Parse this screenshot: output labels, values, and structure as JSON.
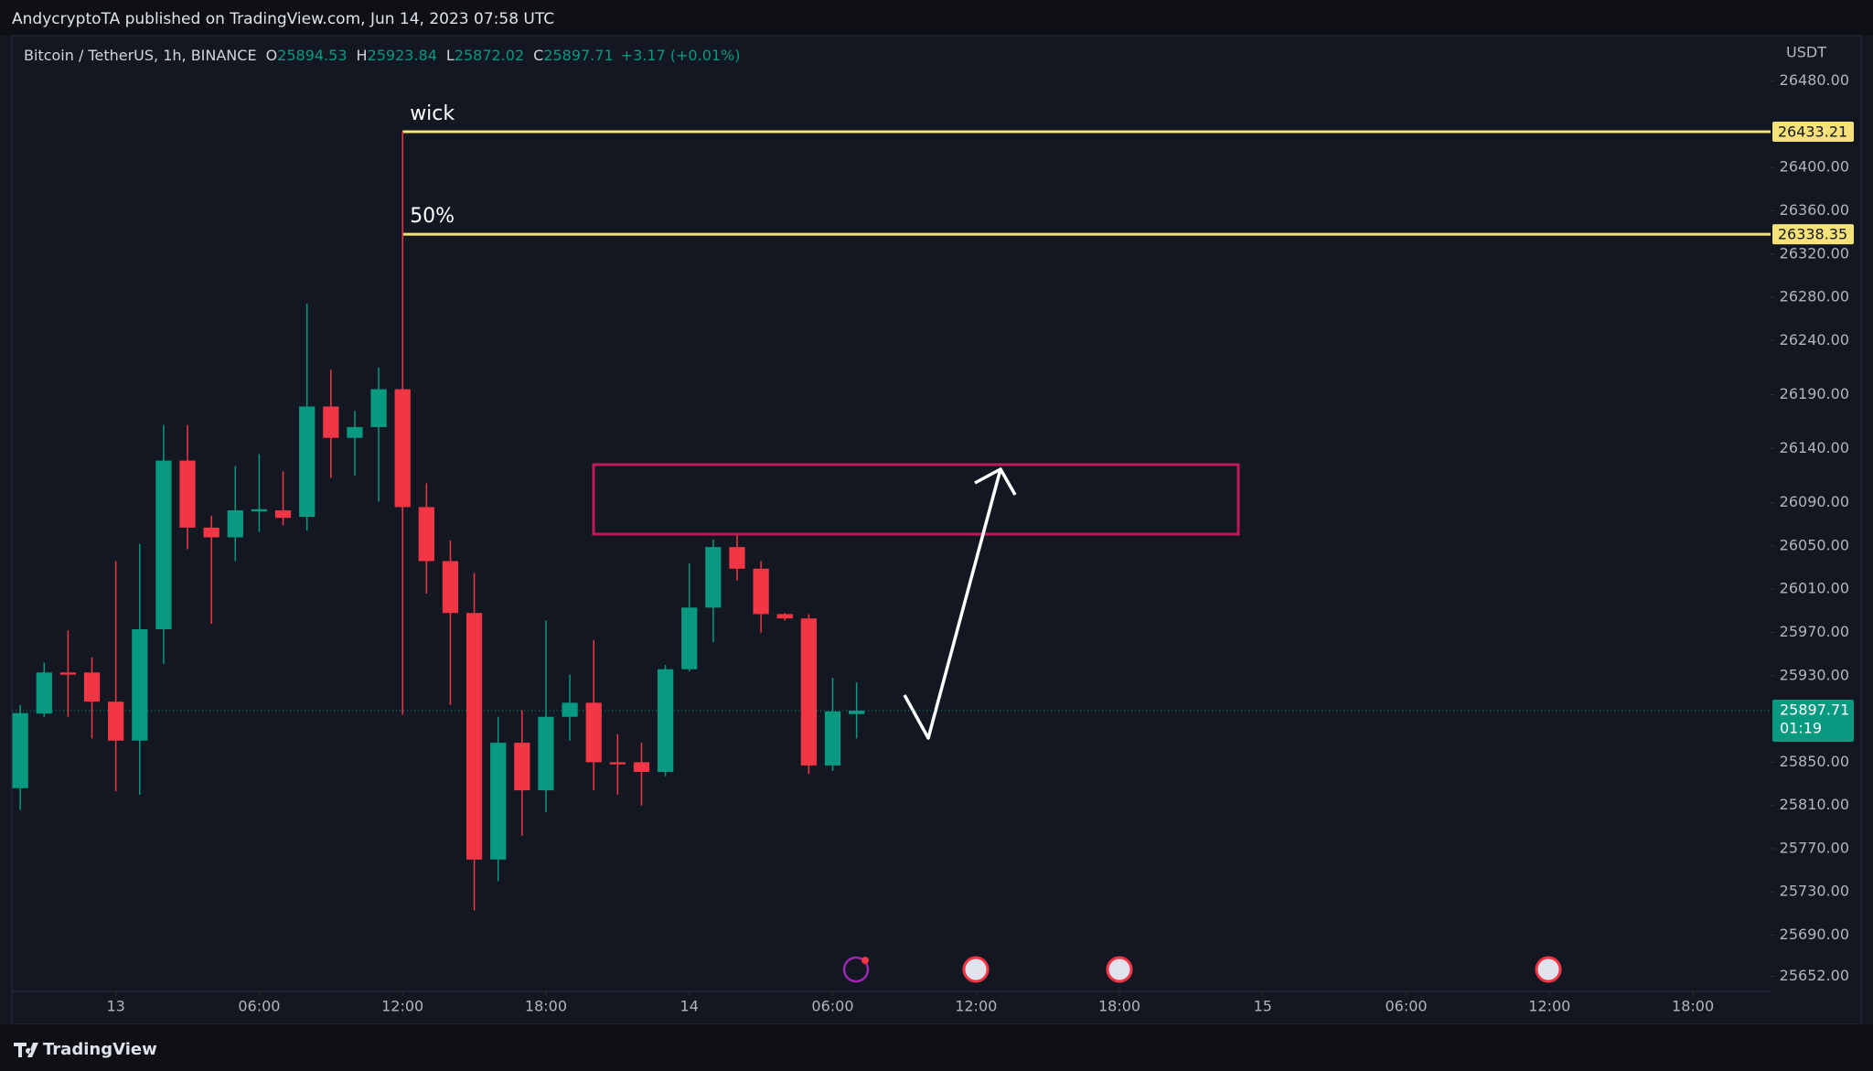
{
  "header": {
    "text": "AndycryptoTA published on TradingView.com, Jun 14, 2023 07:58 UTC"
  },
  "footer": {
    "brand": "TradingView"
  },
  "chart_data": {
    "type": "candlestick",
    "title": "Bitcoin / TetherUS, 1h, BINANCE",
    "ohlc_legend": [
      {
        "label": "O",
        "value": 25894.53
      },
      {
        "label": "H",
        "value": 25923.84
      },
      {
        "label": "L",
        "value": 25872.02
      },
      {
        "label": "C",
        "value": 25897.71
      }
    ],
    "change": "+3.17 (+0.01%)",
    "y_axis_label": "USDT",
    "x": [
      -4,
      -3,
      -2,
      -1,
      0,
      1,
      2,
      3,
      4,
      5,
      6,
      7,
      8,
      9,
      10,
      11,
      12,
      13,
      14,
      15,
      16,
      17,
      18,
      19,
      20,
      21,
      22,
      23,
      24,
      25,
      26,
      27,
      28,
      29,
      30,
      31
    ],
    "open": [
      25826,
      25895,
      25933,
      25933,
      25906,
      25870,
      25973,
      26129,
      26067,
      26058,
      26082,
      26083,
      26077,
      26179,
      26150,
      26160,
      26195,
      26086,
      26036,
      25988,
      25760,
      25868,
      25824,
      25892,
      25905,
      25850,
      25850,
      25841,
      25936,
      25993,
      26049,
      26029,
      25987,
      25983,
      25847,
      25894.53
    ],
    "high": [
      25903,
      25942,
      25972,
      25947,
      26036,
      26052,
      26162,
      26162,
      26078,
      26124,
      26135,
      26119,
      26274,
      26213,
      26175,
      26215,
      26433.21,
      26108,
      26055,
      26025,
      25892,
      25898,
      25981,
      25931,
      25963,
      25876,
      25868,
      25940,
      26034,
      26056,
      26060,
      26036,
      25988,
      25987,
      25928,
      25923.84
    ],
    "low": [
      25806,
      25892,
      25892,
      25872,
      25823,
      25820,
      25941,
      26047,
      25978,
      26036,
      26063,
      26069,
      26064,
      26113,
      26115,
      26091,
      25894,
      26006,
      25903,
      25713,
      25740,
      25782,
      25804,
      25870,
      25824,
      25820,
      25810,
      25837,
      25934,
      25961,
      26018,
      25970,
      25981,
      25839,
      25842,
      25872.02
    ],
    "close": [
      25895.5,
      25933,
      25931,
      25906,
      25870,
      25973,
      26129,
      26067,
      26058,
      26083,
      26084,
      26076,
      26179,
      26150,
      26160,
      26195,
      26086,
      26036,
      25988,
      25760,
      25868,
      25824,
      25892,
      25905,
      25850,
      25848,
      25841,
      25936,
      25993,
      26049,
      26029,
      25987,
      25983,
      25847,
      25897,
      25897.71
    ],
    "up_color": "#089981",
    "down_color": "#f23645",
    "xlim": [
      -4.35,
      69.25
    ],
    "xticks": [
      {
        "value": 0,
        "label": "13"
      },
      {
        "value": 6,
        "label": "06:00"
      },
      {
        "value": 12,
        "label": "12:00"
      },
      {
        "value": 18,
        "label": "18:00"
      },
      {
        "value": 24,
        "label": "14"
      },
      {
        "value": 30,
        "label": "06:00"
      },
      {
        "value": 36,
        "label": "12:00"
      },
      {
        "value": 42,
        "label": "18:00"
      },
      {
        "value": 48,
        "label": "15"
      },
      {
        "value": 54,
        "label": "06:00"
      },
      {
        "value": 60,
        "label": "12:00"
      },
      {
        "value": 66,
        "label": "18:00"
      }
    ],
    "ylim": [
      25638,
      26522
    ],
    "yticks": [
      {
        "value": 26480,
        "label": "26480.00"
      },
      {
        "value": 26400,
        "label": "26400.00"
      },
      {
        "value": 26360,
        "label": "26360.00"
      },
      {
        "value": 26320,
        "label": "26320.00"
      },
      {
        "value": 26280,
        "label": "26280.00"
      },
      {
        "value": 26240,
        "label": "26240.00"
      },
      {
        "value": 26190,
        "label": "26190.00"
      },
      {
        "value": 26140,
        "label": "26140.00"
      },
      {
        "value": 26090,
        "label": "26090.00"
      },
      {
        "value": 26050,
        "label": "26050.00"
      },
      {
        "value": 26010,
        "label": "26010.00"
      },
      {
        "value": 25970,
        "label": "25970.00"
      },
      {
        "value": 25930,
        "label": "25930.00"
      },
      {
        "value": 25850,
        "label": "25850.00"
      },
      {
        "value": 25810,
        "label": "25810.00"
      },
      {
        "value": 25770,
        "label": "25770.00"
      },
      {
        "value": 25730,
        "label": "25730.00"
      },
      {
        "value": 25690,
        "label": "25690.00"
      },
      {
        "value": 25652,
        "label": "25652.00"
      }
    ],
    "levels": [
      {
        "label": "wick",
        "value": 26433.21,
        "x": 12,
        "color": "#f7e27a"
      },
      {
        "label": "50%",
        "value": 26338.35,
        "x": 12,
        "color": "#f7e27a"
      }
    ],
    "last_price": {
      "value": 25897.71,
      "countdown": "01:19"
    }
  }
}
